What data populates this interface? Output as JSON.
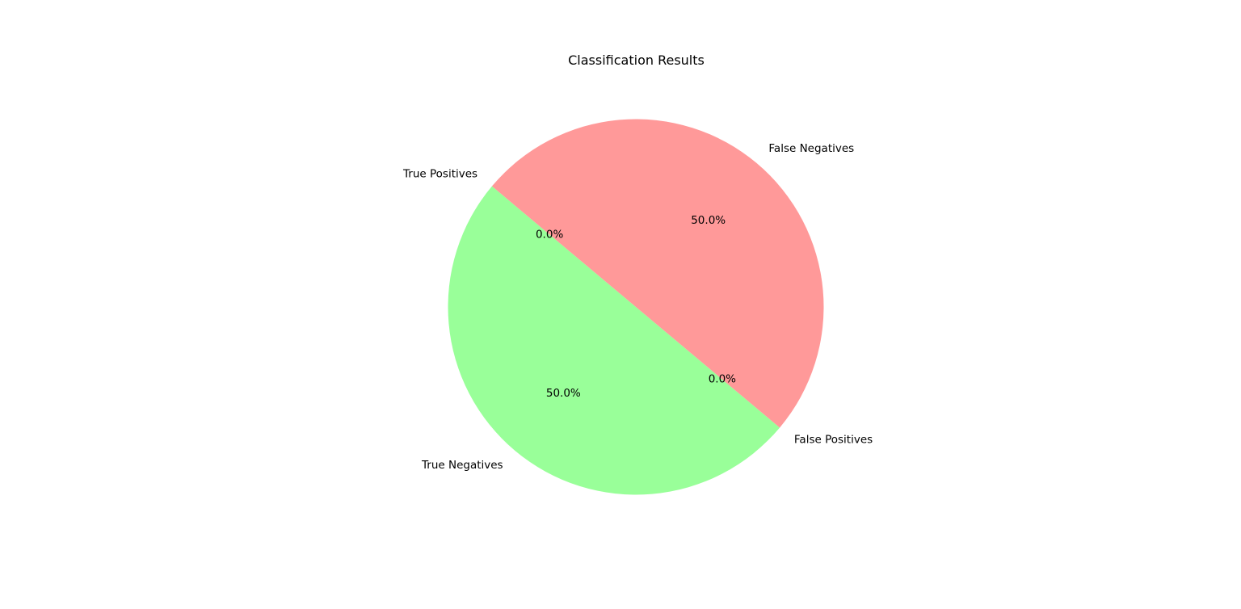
{
  "chart_data": {
    "type": "pie",
    "title": "Classification Results",
    "categories": [
      "True Positives",
      "True Negatives",
      "False Positives",
      "False Negatives"
    ],
    "values": [
      0,
      50,
      0,
      50
    ],
    "percent_labels": [
      "0.0%",
      "50.0%",
      "0.0%",
      "50.0%"
    ],
    "colors": [
      "#66b3ff",
      "#99ff99",
      "#ffcc99",
      "#ff9999"
    ],
    "start_angle_deg": 140,
    "direction": "counterclockwise",
    "legend": "none"
  }
}
